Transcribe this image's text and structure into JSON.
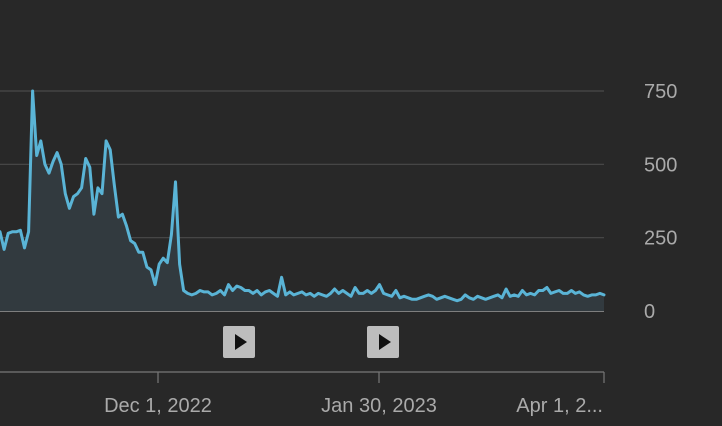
{
  "chart_data": {
    "type": "area",
    "y_ticks": [
      "750",
      "500",
      "250",
      "0"
    ],
    "y_tick_values": [
      750,
      500,
      250,
      0
    ],
    "x_ticks": [
      "Dec 1, 2022",
      "Jan 30, 2023",
      "Apr 1, 2..."
    ],
    "ylim": [
      0,
      750
    ],
    "grid": true,
    "line_color": "#5ab4d6",
    "series": [
      {
        "values": [
          270,
          210,
          265,
          270,
          270,
          275,
          215,
          270,
          750,
          530,
          580,
          500,
          470,
          510,
          540,
          500,
          400,
          350,
          390,
          400,
          420,
          520,
          490,
          330,
          420,
          400,
          580,
          550,
          430,
          320,
          330,
          290,
          240,
          230,
          200,
          200,
          150,
          140,
          90,
          160,
          180,
          165,
          260,
          440,
          160,
          70,
          60,
          55,
          60,
          70,
          65,
          65,
          55,
          60,
          70,
          55,
          90,
          70,
          85,
          80,
          70,
          70,
          60,
          70,
          55,
          65,
          70,
          60,
          50,
          115,
          55,
          65,
          55,
          60,
          65,
          55,
          60,
          50,
          60,
          55,
          50,
          60,
          75,
          60,
          70,
          60,
          50,
          80,
          60,
          60,
          70,
          60,
          70,
          90,
          60,
          55,
          50,
          70,
          45,
          50,
          45,
          40,
          40,
          45,
          50,
          55,
          50,
          40,
          45,
          50,
          45,
          40,
          35,
          40,
          55,
          45,
          40,
          50,
          45,
          40,
          45,
          50,
          55,
          45,
          75,
          50,
          55,
          50,
          70,
          55,
          60,
          55,
          70,
          70,
          80,
          60,
          65,
          70,
          60,
          60,
          70,
          60,
          65,
          55,
          50,
          55,
          55,
          60,
          55
        ]
      }
    ]
  },
  "markers": [
    {
      "label": "play-marker-1"
    },
    {
      "label": "play-marker-2"
    }
  ]
}
